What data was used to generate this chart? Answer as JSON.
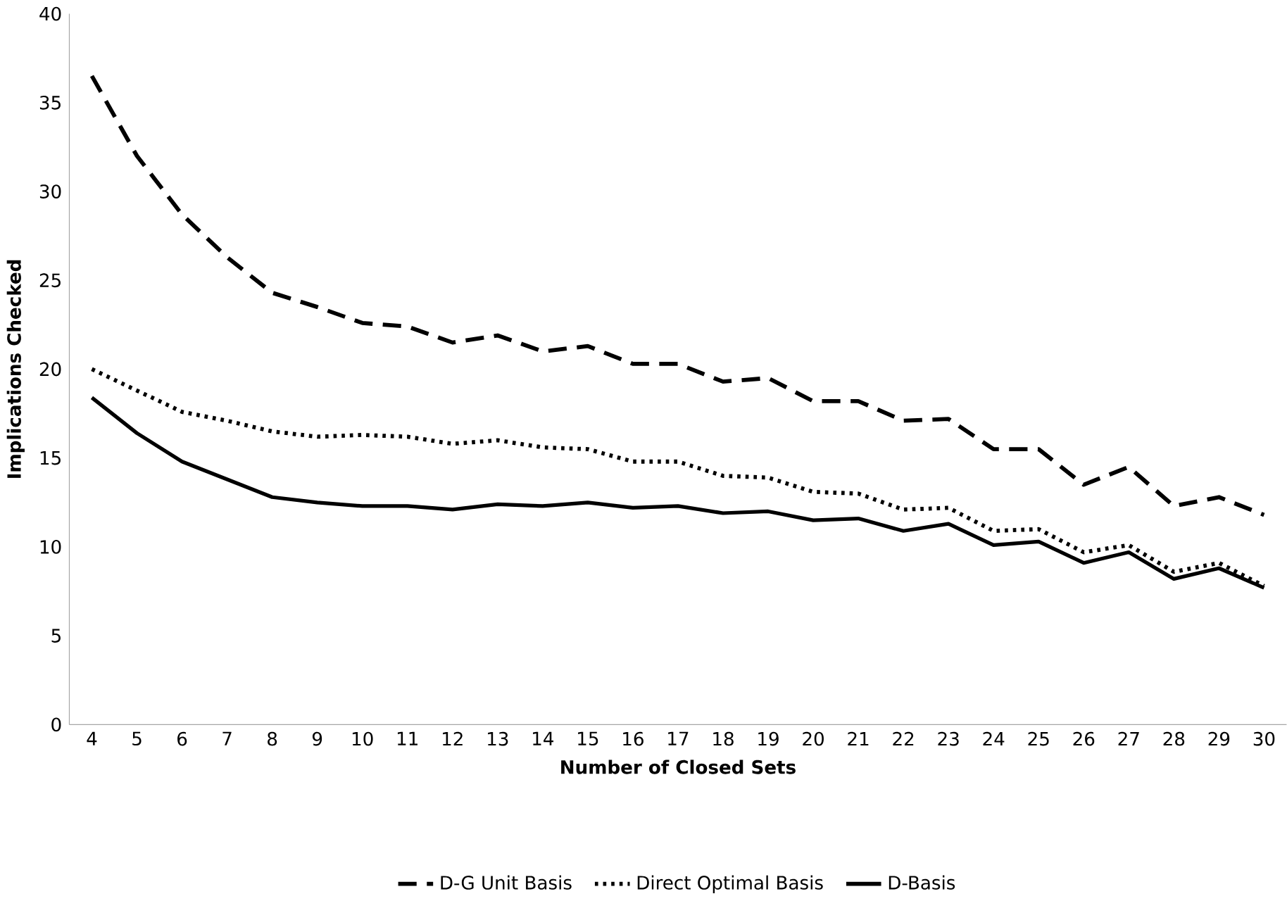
{
  "chart_data": {
    "type": "line",
    "xlabel": "Number of Closed Sets",
    "ylabel": "Implications Checked",
    "categories": [
      "4",
      "5",
      "6",
      "7",
      "8",
      "9",
      "10",
      "11",
      "12",
      "13",
      "14",
      "15",
      "16",
      "17",
      "18",
      "19",
      "20",
      "21",
      "22",
      "23",
      "24",
      "25",
      "26",
      "27",
      "28",
      "29",
      "30"
    ],
    "ylim": [
      0,
      40
    ],
    "yticks": [
      0,
      5,
      10,
      15,
      20,
      25,
      30,
      35,
      40
    ],
    "grid": false,
    "legend": "bottom",
    "marker": "none",
    "series": [
      {
        "name": "D-G Unit Basis",
        "color": "#000000",
        "line_style": "dashed",
        "values": [
          36.5,
          32,
          28.7,
          26.3,
          24.3,
          23.5,
          22.6,
          22.4,
          21.5,
          21.9,
          21,
          21.3,
          20.3,
          20.3,
          19.3,
          19.5,
          18.2,
          18.2,
          17.1,
          17.2,
          15.5,
          15.5,
          13.5,
          14.5,
          12.3,
          12.8,
          11.8
        ]
      },
      {
        "name": "Direct Optimal Basis",
        "color": "#000000",
        "line_style": "dotted",
        "values": [
          20,
          18.8,
          17.6,
          17.1,
          16.5,
          16.2,
          16.3,
          16.2,
          15.8,
          16,
          15.6,
          15.5,
          14.8,
          14.8,
          14,
          13.9,
          13.1,
          13,
          12.1,
          12.2,
          10.9,
          11,
          9.7,
          10.1,
          8.6,
          9.1,
          7.8
        ]
      },
      {
        "name": "D-Basis",
        "color": "#000000",
        "line_style": "solid",
        "values": [
          18.4,
          16.4,
          14.8,
          13.8,
          12.8,
          12.5,
          12.3,
          12.3,
          12.1,
          12.4,
          12.3,
          12.5,
          12.2,
          12.3,
          11.9,
          12,
          11.5,
          11.6,
          10.9,
          11.3,
          10.1,
          10.3,
          9.1,
          9.7,
          8.2,
          8.8,
          7.7
        ]
      }
    ]
  }
}
